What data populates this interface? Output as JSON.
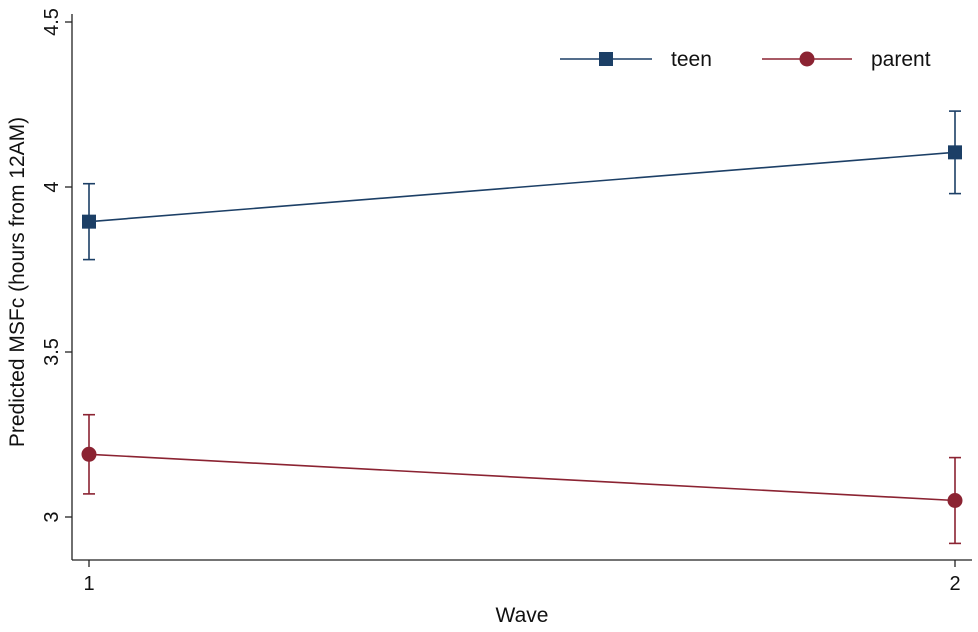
{
  "chart_data": {
    "type": "line",
    "title": "",
    "xlabel": "Wave",
    "ylabel": "Predicted MSFc (hours from 12AM)",
    "x": [
      1,
      2
    ],
    "xticks": [
      "1",
      "2"
    ],
    "ylim": [
      2.87,
      4.5
    ],
    "yticks": [
      "3",
      "3.5",
      "4",
      "4.5"
    ],
    "grid": false,
    "legend": {
      "placement": "top-right",
      "orientation": "horizontal"
    },
    "series": [
      {
        "name": "teen",
        "marker": "square",
        "color": "#1c3f66",
        "values": [
          3.895,
          4.105
        ],
        "ci_low": [
          3.78,
          3.98
        ],
        "ci_high": [
          4.01,
          4.23
        ]
      },
      {
        "name": "parent",
        "marker": "circle",
        "color": "#8b2332",
        "values": [
          3.19,
          3.05
        ],
        "ci_low": [
          3.07,
          2.92
        ],
        "ci_high": [
          3.31,
          3.18
        ]
      }
    ]
  }
}
